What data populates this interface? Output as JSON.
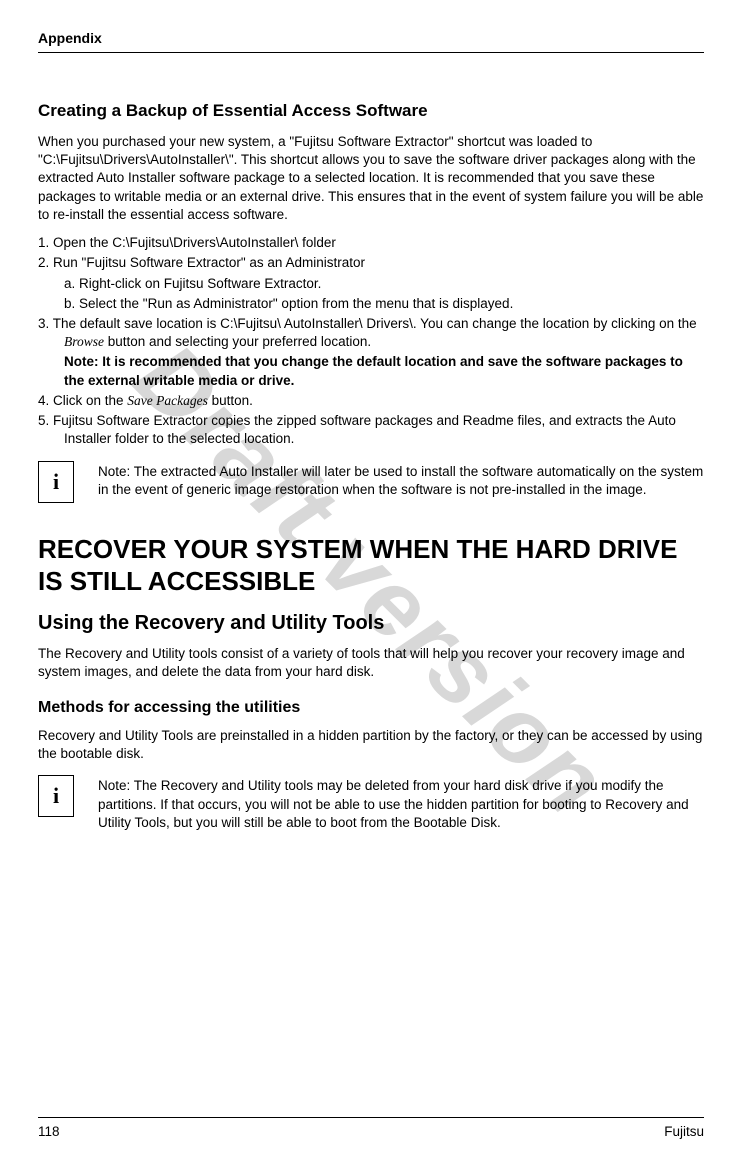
{
  "header": {
    "title": "Appendix"
  },
  "watermark": "Draft version",
  "section1": {
    "heading": "Creating a Backup of Essential Access Software",
    "intro": "When you purchased your new system, a \"Fujitsu Software Extractor\" shortcut was loaded to \"C:\\Fujitsu\\Drivers\\AutoInstaller\\\". This shortcut allows you to save the software driver packages along with the extracted Auto Installer software package to a selected location. It is recommended that you save these packages to writable media or an external drive. This ensures that in the event of system failure you will be able to re-install the essential access software.",
    "steps": {
      "s1": "1.    Open the C:\\Fujitsu\\Drivers\\AutoInstaller\\ folder",
      "s2": "2.    Run \"Fujitsu Software Extractor\" as an Administrator",
      "s2a": "a.  Right-click on Fujitsu Software Extractor.",
      "s2b": "b. Select the \"Run as Administrator\" option from the menu that is displayed.",
      "s3a": "3.    The default save location is C:\\Fujitsu\\ AutoInstaller\\ Drivers\\. You can change the location by clicking on the ",
      "s3b": " button and selecting your preferred location.",
      "s3_browse": "Browse",
      "s3_note": "Note: It is recommended that you change the default location and save the software packages to the external writable media or drive.",
      "s4a": "4.    Click  on  the  ",
      "s4_save": "Save  Packages",
      "s4b": "  button.",
      "s5": "5.    Fujitsu Software Extractor copies the zipped software packages and Readme files, and extracts the Auto Installer folder to the selected location."
    },
    "note": "Note: The extracted Auto Installer will later be used to install the software automatically on the system in the event of generic image restoration when the software is not pre-installed in the image."
  },
  "section2": {
    "h1": "RECOVER YOUR SYSTEM WHEN THE HARD DRIVE IS STILL ACCESSIBLE",
    "h2": "Using the Recovery and Utility Tools",
    "intro": "The Recovery and Utility tools consist of a variety of tools that will help you recover your recovery image and system images, and delete the data from your hard disk.",
    "h3": "Methods for accessing the utilities",
    "body": "Recovery and Utility Tools are preinstalled in a hidden partition by the factory, or they can be accessed by using the bootable disk.",
    "note": "Note: The Recovery and Utility tools may be deleted from your hard disk drive if you modify the partitions.  If that occurs, you will not be able to use the hidden partition for booting to Recovery and Utility Tools, but you will still be able to boot from the Bootable Disk."
  },
  "footer": {
    "page": "118",
    "brand": "Fujitsu"
  },
  "info_icon": "i"
}
